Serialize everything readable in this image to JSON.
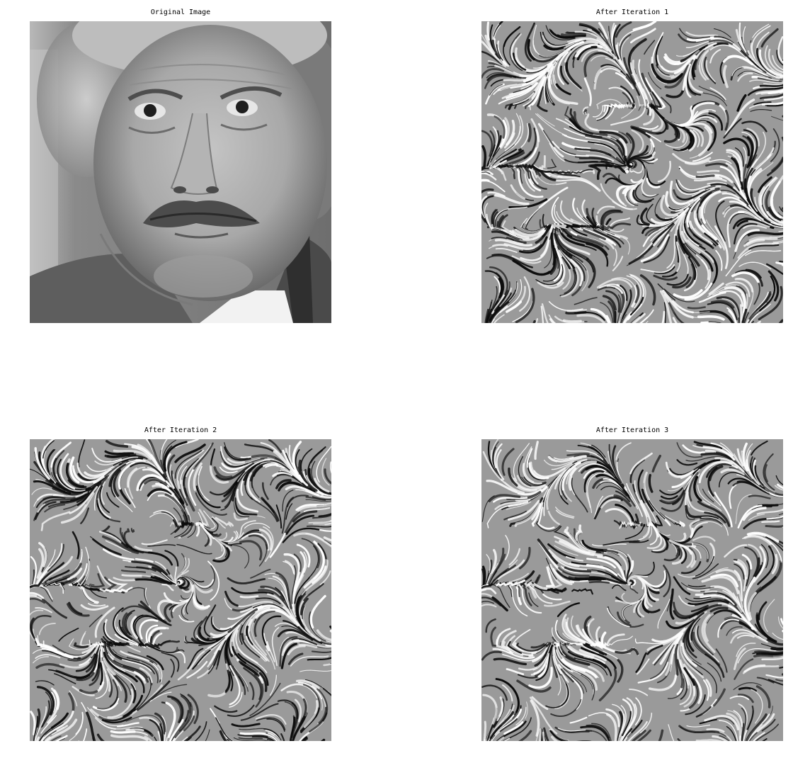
{
  "figure": {
    "panels": [
      {
        "title": "Original Image",
        "image": "grayscale-portrait-photo"
      },
      {
        "title": "After Iteration 1",
        "image": "swirl-texture-iteration-1"
      },
      {
        "title": "After Iteration 2",
        "image": "swirl-texture-iteration-2"
      },
      {
        "title": "After Iteration 3",
        "image": "swirl-texture-iteration-3"
      }
    ]
  }
}
